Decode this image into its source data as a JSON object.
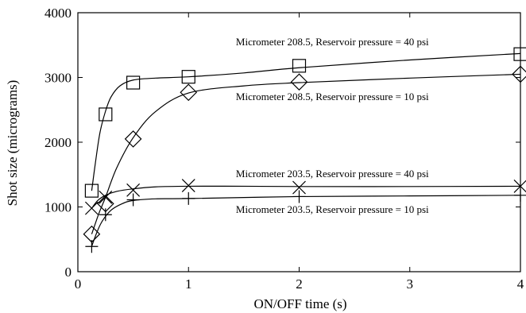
{
  "chart_data": {
    "type": "scatter",
    "title": "",
    "xlabel": "ON/OFF time (s)",
    "ylabel": "Shot size (micrograms)",
    "xlim": [
      0,
      4
    ],
    "ylim": [
      0,
      4000
    ],
    "xticks": [
      0,
      1,
      2,
      3,
      4
    ],
    "yticks": [
      0,
      1000,
      2000,
      3000,
      4000
    ],
    "grid": false,
    "legend": "none",
    "series": [
      {
        "name": "Micrometer 208.5, Reservoir pressure = 40 psi",
        "marker": "square",
        "x": [
          0.125,
          0.25,
          0.5,
          1,
          2,
          4
        ],
        "y": [
          1250,
          2430,
          2920,
          3010,
          3180,
          3360
        ],
        "fit": [
          [
            0.125,
            1250
          ],
          [
            0.16,
            1700
          ],
          [
            0.2,
            2150
          ],
          [
            0.25,
            2480
          ],
          [
            0.3,
            2700
          ],
          [
            0.38,
            2870
          ],
          [
            0.5,
            2960
          ],
          [
            0.7,
            2990
          ],
          [
            1,
            3010
          ],
          [
            1.5,
            3070
          ],
          [
            2,
            3150
          ],
          [
            3,
            3270
          ],
          [
            4,
            3370
          ]
        ]
      },
      {
        "name": "Micrometer 208.5, Reservoir pressure = 10 psi",
        "marker": "diamond",
        "x": [
          0.125,
          0.25,
          0.5,
          1,
          2,
          4
        ],
        "y": [
          580,
          1050,
          2050,
          2770,
          2930,
          3050
        ],
        "fit": [
          [
            0.125,
            580
          ],
          [
            0.19,
            900
          ],
          [
            0.25,
            1150
          ],
          [
            0.35,
            1600
          ],
          [
            0.5,
            2070
          ],
          [
            0.7,
            2470
          ],
          [
            1,
            2760
          ],
          [
            1.5,
            2870
          ],
          [
            2,
            2920
          ],
          [
            3,
            2990
          ],
          [
            4,
            3050
          ]
        ]
      },
      {
        "name": "Micrometer 203.5, Reservoir pressure = 40 psi",
        "marker": "x",
        "x": [
          0.125,
          0.25,
          0.5,
          1,
          2,
          4
        ],
        "y": [
          980,
          1150,
          1260,
          1330,
          1300,
          1320
        ],
        "fit": [
          [
            0.125,
            980
          ],
          [
            0.18,
            1100
          ],
          [
            0.25,
            1180
          ],
          [
            0.35,
            1240
          ],
          [
            0.5,
            1280
          ],
          [
            0.7,
            1310
          ],
          [
            1,
            1320
          ],
          [
            1.5,
            1320
          ],
          [
            2,
            1315
          ],
          [
            3,
            1315
          ],
          [
            4,
            1320
          ]
        ]
      },
      {
        "name": "Micrometer 203.5, Reservoir pressure = 10 psi",
        "marker": "plus",
        "x": [
          0.125,
          0.25,
          0.5,
          1,
          2,
          4
        ],
        "y": [
          390,
          880,
          1110,
          1130,
          1160,
          1180
        ],
        "fit": [
          [
            0.125,
            390
          ],
          [
            0.17,
            600
          ],
          [
            0.22,
            780
          ],
          [
            0.3,
            950
          ],
          [
            0.4,
            1050
          ],
          [
            0.5,
            1100
          ],
          [
            0.7,
            1125
          ],
          [
            1,
            1130
          ],
          [
            2,
            1160
          ],
          [
            3,
            1170
          ],
          [
            4,
            1180
          ]
        ]
      }
    ],
    "annotations": [
      {
        "text": "Micrometer 208.5, Reservoir pressure = 40 psi",
        "x": 2.3,
        "y": 3500
      },
      {
        "text": "Micrometer 208.5, Reservoir pressure = 10 psi",
        "x": 2.3,
        "y": 2650
      },
      {
        "text": "Micrometer 203.5, Reservoir pressure = 40 psi",
        "x": 2.3,
        "y": 1460
      },
      {
        "text": "Micrometer 203.5, Reservoir pressure = 10 psi",
        "x": 2.3,
        "y": 910
      }
    ]
  }
}
